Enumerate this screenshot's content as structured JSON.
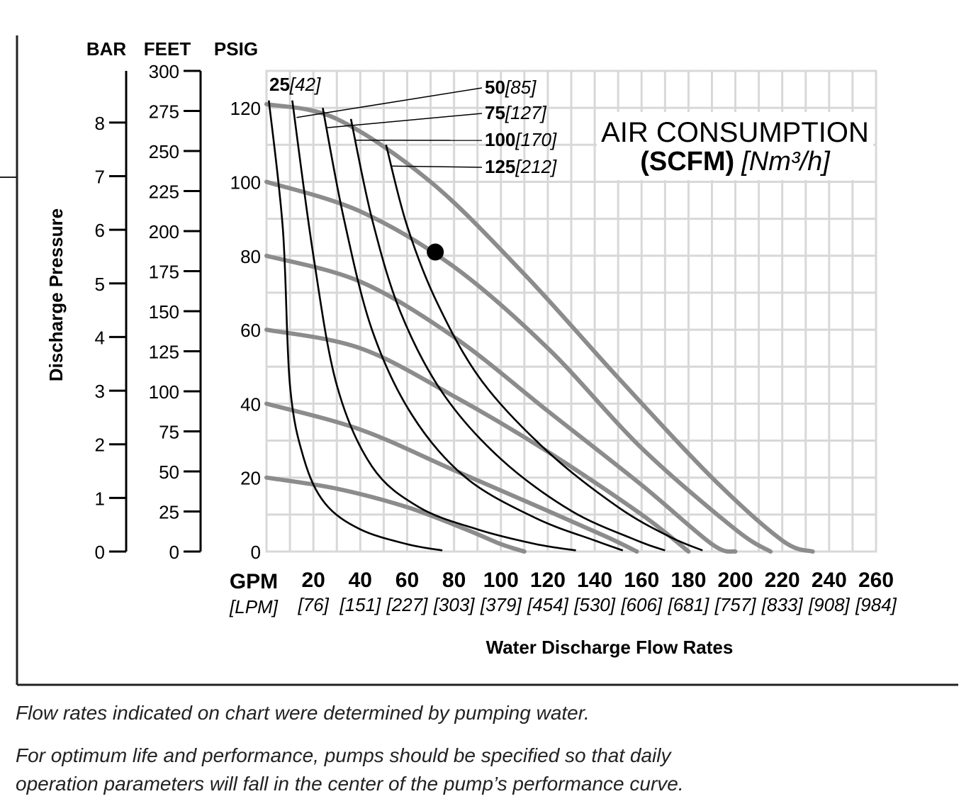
{
  "chart_data": {
    "type": "line",
    "title": "AIR CONSUMPTION",
    "title_unit_bold": "(SCFM)",
    "title_unit_italic": "[Nm³/h]",
    "xlabel": "Water Discharge Flow Rates",
    "x_primary_unit": "GPM",
    "x_secondary_unit": "[LPM]",
    "xlim": [
      0,
      260
    ],
    "x_ticks": [
      20,
      40,
      60,
      80,
      100,
      120,
      140,
      160,
      180,
      200,
      220,
      240,
      260
    ],
    "x_ticks_lpm": [
      "[76]",
      "[151]",
      "[227]",
      "[303]",
      "[379]",
      "[454]",
      "[530]",
      "[606]",
      "[681]",
      "[757]",
      "[833]",
      "[908]",
      "[984]"
    ],
    "ylabel": "Discharge Pressure",
    "y_unit_labels": [
      "BAR",
      "FEET",
      "PSIG"
    ],
    "ylim": [
      0,
      130
    ],
    "y_ticks_psig": [
      0,
      20,
      40,
      60,
      80,
      100,
      120
    ],
    "y_ticks_feet": [
      0,
      25,
      50,
      75,
      100,
      125,
      150,
      175,
      200,
      225,
      250,
      275,
      300
    ],
    "y_ticks_bar": [
      0,
      1,
      2,
      3,
      4,
      5,
      6,
      7,
      8
    ],
    "air_consumption_curves": [
      {
        "label": "25",
        "metric": "[42]",
        "points": [
          [
            1,
            122
          ],
          [
            7,
            87
          ],
          [
            10,
            45
          ],
          [
            16,
            25
          ],
          [
            25,
            13
          ],
          [
            40,
            6
          ],
          [
            60,
            2
          ],
          [
            75,
            0.3
          ]
        ]
      },
      {
        "label": "50",
        "metric": "[85]",
        "points": [
          [
            11,
            122
          ],
          [
            20,
            80
          ],
          [
            30,
            45
          ],
          [
            45,
            23
          ],
          [
            65,
            12
          ],
          [
            90,
            6
          ],
          [
            115,
            2
          ],
          [
            132,
            0.3
          ]
        ]
      },
      {
        "label": "75",
        "metric": "[127]",
        "points": [
          [
            24,
            120
          ],
          [
            33,
            90
          ],
          [
            45,
            60
          ],
          [
            62,
            37
          ],
          [
            85,
            20
          ],
          [
            115,
            9
          ],
          [
            140,
            3
          ],
          [
            152,
            0.3
          ]
        ]
      },
      {
        "label": "100",
        "metric": "[170]",
        "points": [
          [
            36,
            117
          ],
          [
            45,
            90
          ],
          [
            57,
            65
          ],
          [
            75,
            43
          ],
          [
            100,
            25
          ],
          [
            130,
            11
          ],
          [
            158,
            3
          ],
          [
            170,
            0.3
          ]
        ]
      },
      {
        "label": "125",
        "metric": "[212]",
        "points": [
          [
            51,
            110
          ],
          [
            60,
            88
          ],
          [
            73,
            67
          ],
          [
            92,
            46
          ],
          [
            120,
            27
          ],
          [
            150,
            12
          ],
          [
            172,
            4
          ],
          [
            186,
            0.3
          ]
        ]
      }
    ],
    "pressure_curves": [
      {
        "name": "20 psig start",
        "points": [
          [
            0,
            20
          ],
          [
            30,
            17
          ],
          [
            60,
            12
          ],
          [
            85,
            6
          ],
          [
            100,
            2
          ],
          [
            110,
            0
          ]
        ]
      },
      {
        "name": "40 psig start",
        "points": [
          [
            0,
            40
          ],
          [
            40,
            33
          ],
          [
            80,
            22
          ],
          [
            120,
            11
          ],
          [
            145,
            4
          ],
          [
            158,
            0
          ]
        ]
      },
      {
        "name": "60 psig start",
        "points": [
          [
            0,
            60
          ],
          [
            40,
            55
          ],
          [
            80,
            42
          ],
          [
            120,
            27
          ],
          [
            160,
            10
          ],
          [
            180,
            0
          ]
        ]
      },
      {
        "name": "80 psig start",
        "points": [
          [
            0,
            80
          ],
          [
            40,
            73
          ],
          [
            80,
            58
          ],
          [
            120,
            38
          ],
          [
            160,
            18
          ],
          [
            190,
            2
          ],
          [
            200,
            0
          ]
        ]
      },
      {
        "name": "100 psig start",
        "points": [
          [
            0,
            100
          ],
          [
            40,
            92
          ],
          [
            80,
            77
          ],
          [
            120,
            55
          ],
          [
            160,
            28
          ],
          [
            200,
            6
          ],
          [
            215,
            0
          ]
        ]
      },
      {
        "name": "120 psig start",
        "points": [
          [
            0,
            121
          ],
          [
            30,
            117
          ],
          [
            70,
            100
          ],
          [
            110,
            75
          ],
          [
            150,
            47
          ],
          [
            190,
            20
          ],
          [
            220,
            3
          ],
          [
            233,
            0
          ]
        ]
      }
    ],
    "marked_point": {
      "gpm": 72,
      "psig": 81
    },
    "grid": true
  },
  "footnotes": {
    "line1": "Flow rates indicated on chart were determined by pumping water.",
    "line2a": "For optimum life and performance, pumps should be specified so that daily",
    "line2b": "operation parameters will fall in the center of the pump’s performance curve."
  }
}
